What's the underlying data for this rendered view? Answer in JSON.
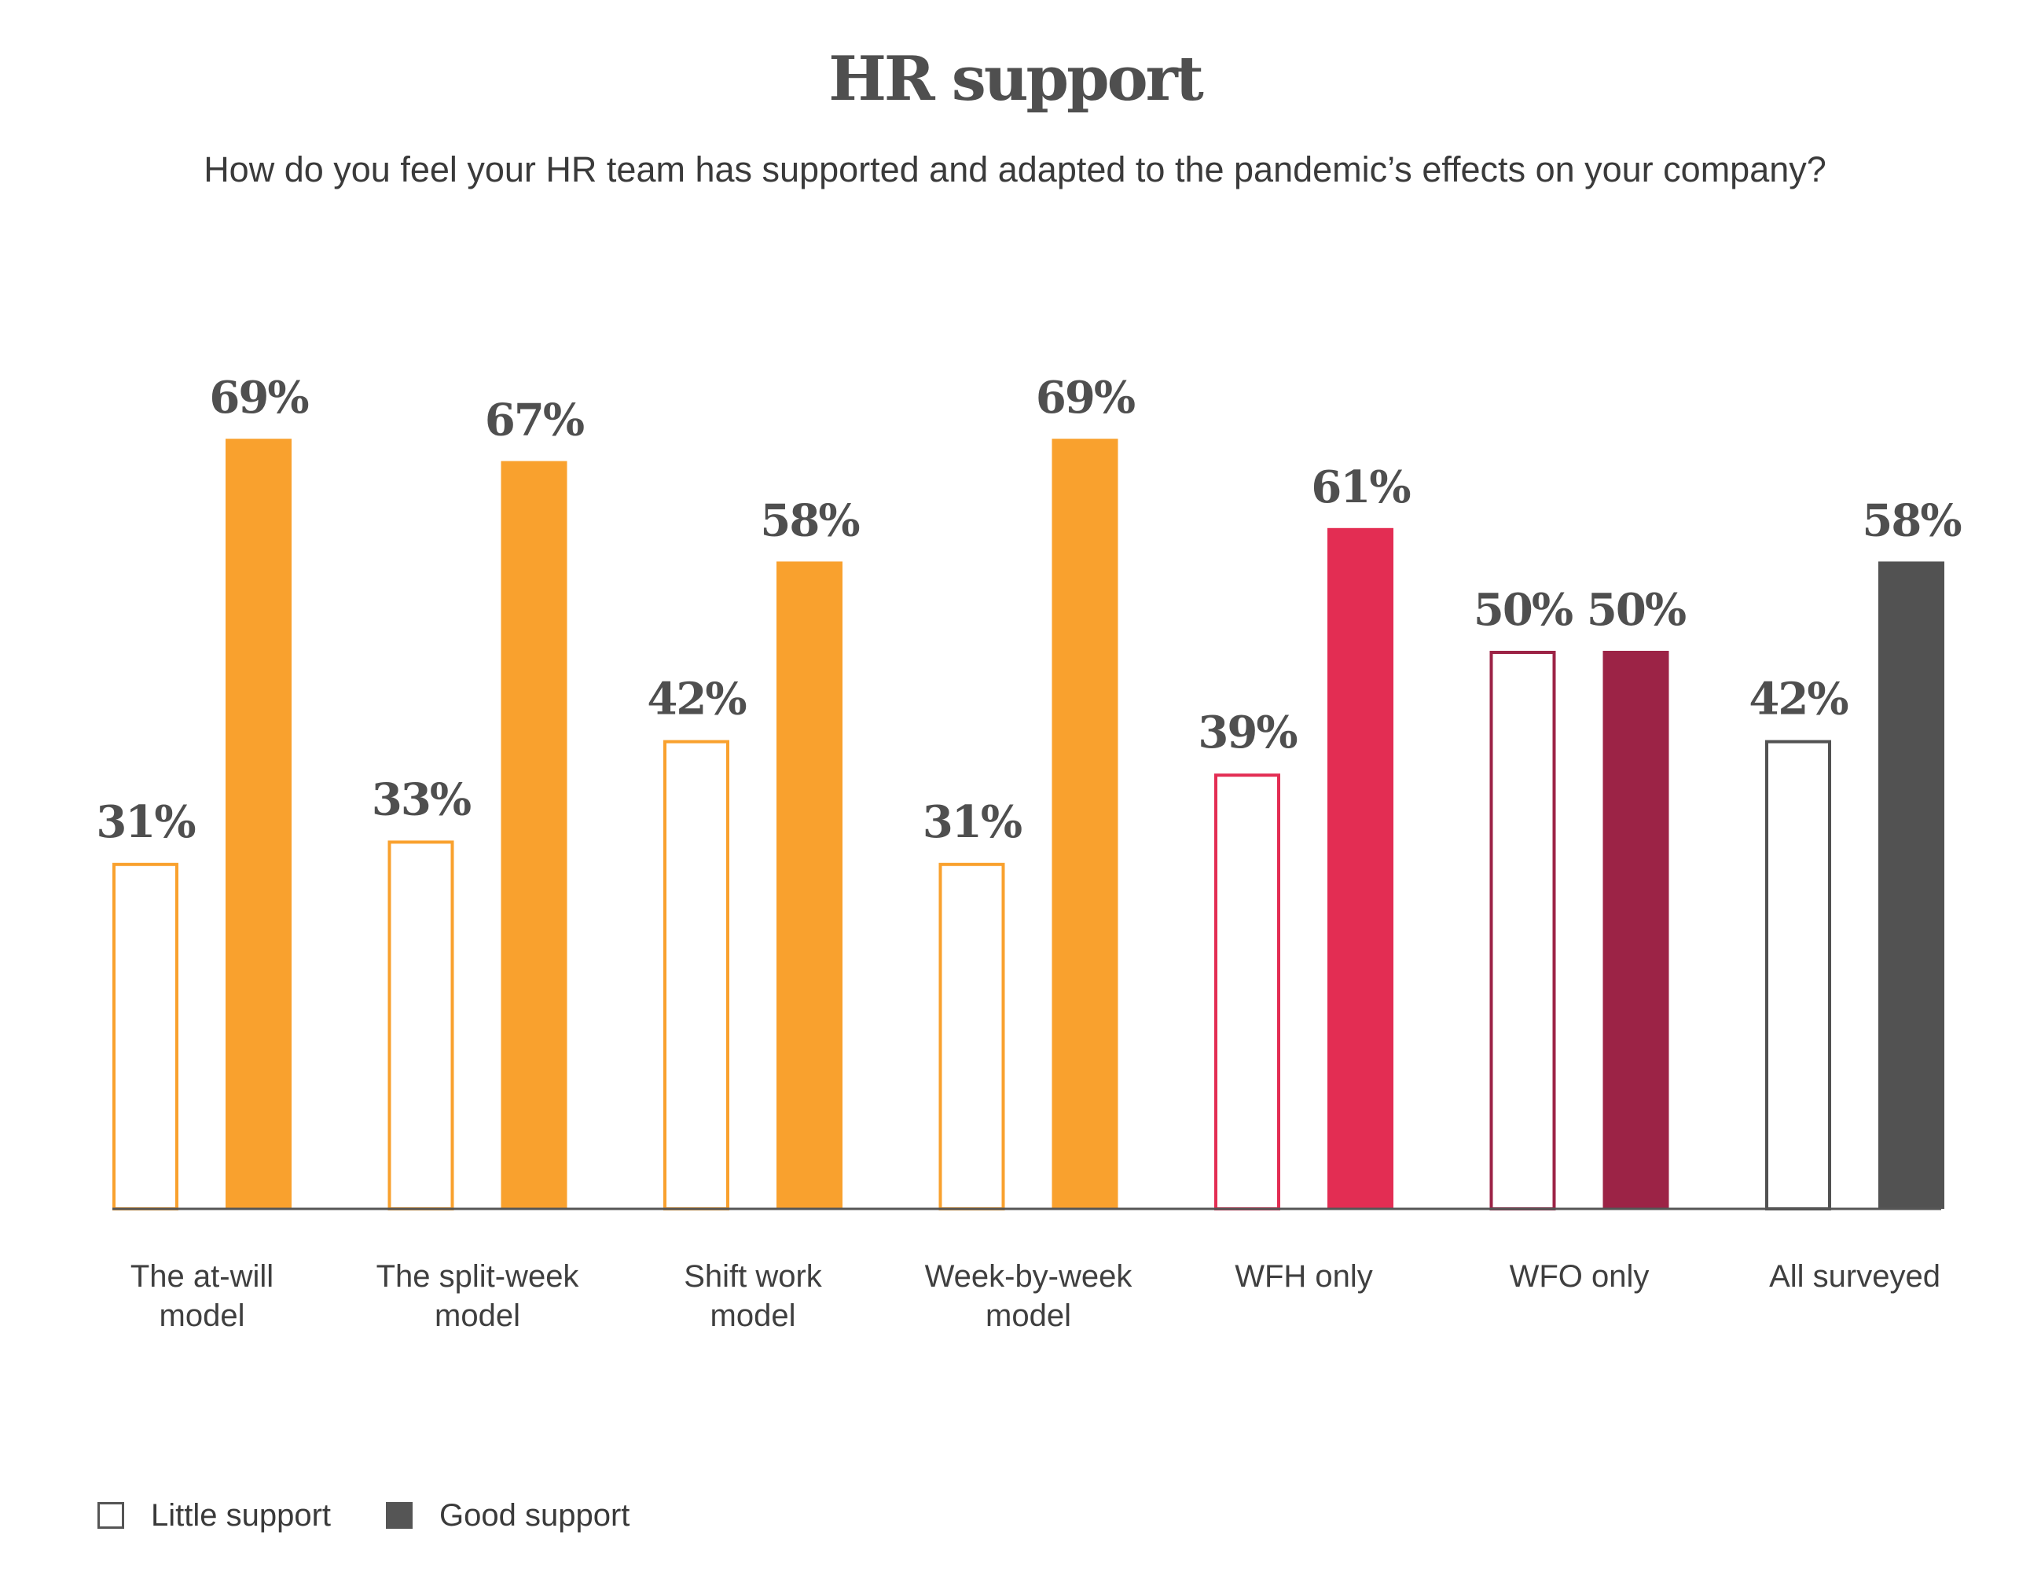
{
  "title": "HR support",
  "subtitle": "How do you feel your HR team has supported and adapted to the pandemic’s effects on your company?",
  "legend": {
    "little_label": "Little support",
    "good_label": "Good support"
  },
  "chart_data": {
    "type": "bar",
    "title": "HR support",
    "subtitle": "How do you feel your HR team has supported and adapted to the pandemic’s effects on your company?",
    "categories": [
      [
        "The at-will",
        "model"
      ],
      [
        "The split-week",
        "model"
      ],
      [
        "Shift work",
        "model"
      ],
      [
        "Week-by-week",
        "model"
      ],
      [
        "WFH only"
      ],
      [
        "WFO only"
      ],
      [
        "All surveyed"
      ]
    ],
    "series": [
      {
        "name": "Little support",
        "style": "outline",
        "values": [
          31,
          33,
          42,
          31,
          39,
          50,
          42
        ]
      },
      {
        "name": "Good support",
        "style": "filled",
        "values": [
          69,
          67,
          58,
          69,
          61,
          50,
          58
        ]
      }
    ],
    "category_colors": [
      "#f9a12e",
      "#f9a12e",
      "#f9a12e",
      "#f9a12e",
      "#e32d53",
      "#9c2346",
      "#525252"
    ],
    "value_suffix": "%",
    "ylim": [
      0,
      100
    ],
    "grid": false,
    "legend_position": "bottom-left",
    "baseline_color": "#555555"
  }
}
